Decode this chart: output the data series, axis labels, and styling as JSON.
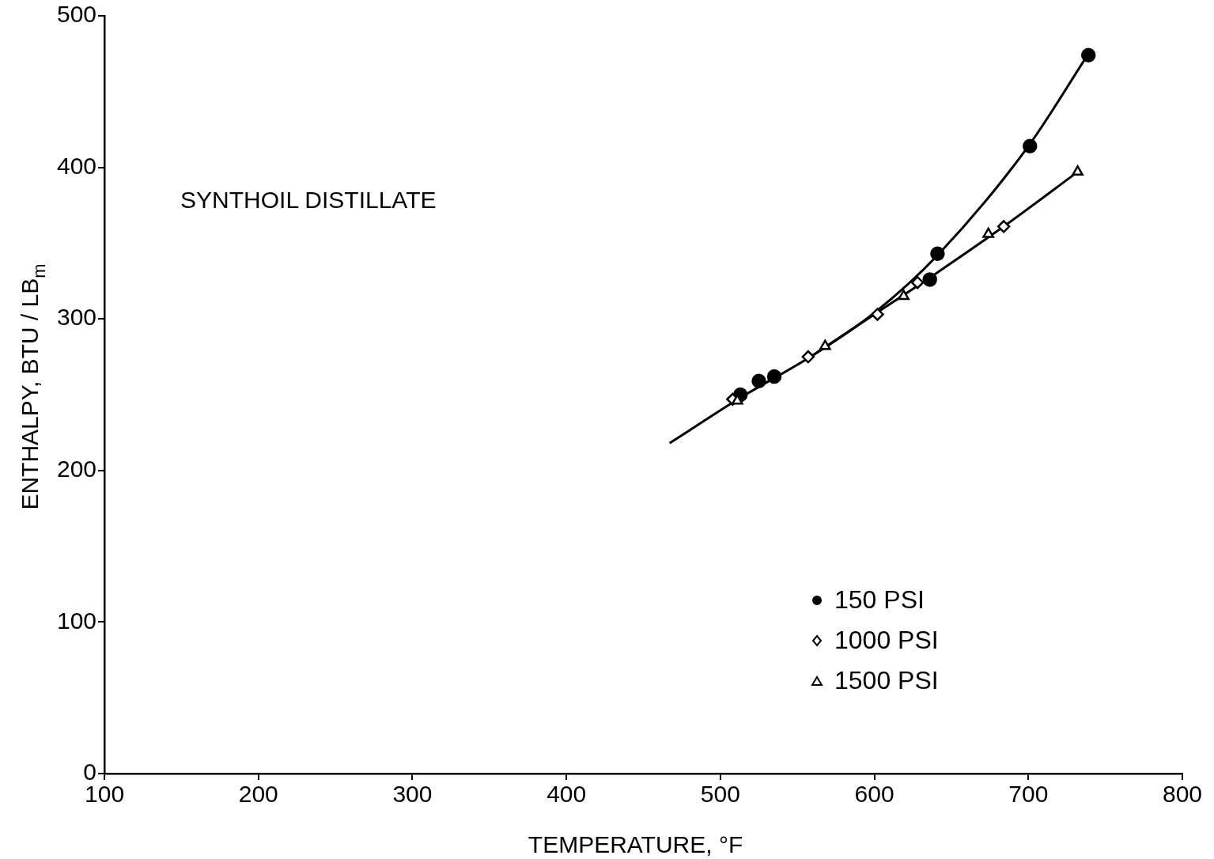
{
  "chart_data": {
    "type": "scatter",
    "xlabel": "TEMPERATURE, °F",
    "ylabel": "ENTHALPY, BTU / LB$_{m}$",
    "annotations": [
      "SYNTHOIL DISTILLATE"
    ],
    "xlim": [
      100,
      800
    ],
    "xticks": [
      100,
      200,
      300,
      400,
      500,
      600,
      700,
      800
    ],
    "ylim": [
      0,
      500
    ],
    "yticks": [
      0,
      100,
      200,
      300,
      400,
      500
    ],
    "grid": false,
    "legend": "bottom right",
    "series": [
      {
        "name": "150 PSI",
        "color": "#000000",
        "marker": "circle",
        "x": [
          513,
          525,
          535,
          636,
          641,
          701,
          739
        ],
        "values": [
          250,
          259,
          262,
          326,
          343,
          414,
          474
        ]
      },
      {
        "name": "1000 PSI",
        "color": "#000000",
        "marker": "diamond",
        "x": [
          508,
          557,
          602,
          628,
          684
        ],
        "values": [
          247,
          275,
          303,
          324,
          361
        ]
      },
      {
        "name": "1500 PSI",
        "color": "#000000",
        "marker": "triangle",
        "x": [
          511,
          568,
          619,
          674,
          732
        ],
        "values": [
          246,
          282,
          315,
          356,
          397
        ]
      },
      {
        "type": "line",
        "color": "#000000",
        "marker": "none",
        "x": [
          467,
          513,
          560,
          600,
          641,
          700,
          739
        ],
        "values": [
          218,
          248,
          276,
          304,
          342,
          414,
          475
        ]
      },
      {
        "type": "line",
        "color": "#000000",
        "marker": "none",
        "x": [
          560,
          600,
          640,
          684,
          732
        ],
        "values": [
          276,
          303,
          330,
          361,
          397
        ]
      }
    ]
  }
}
